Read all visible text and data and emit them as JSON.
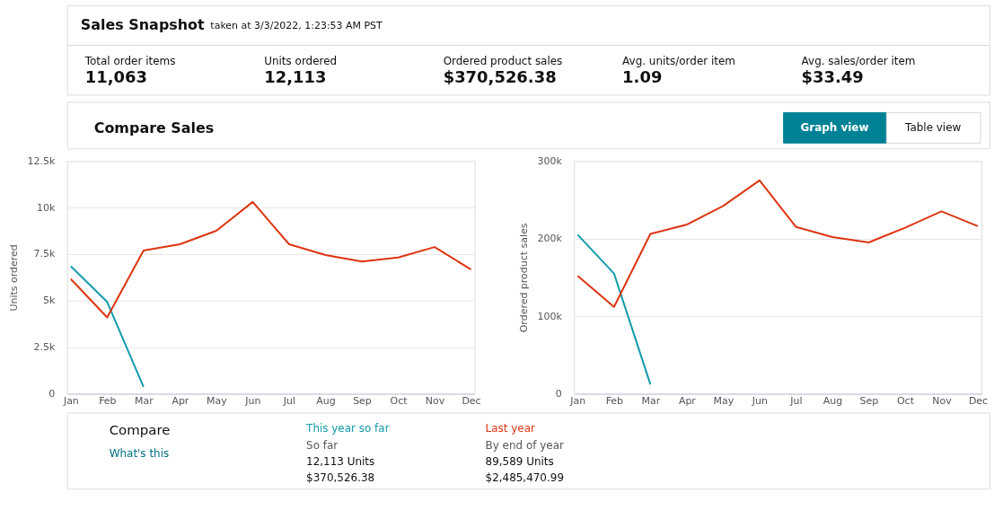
{
  "chart_data": [
    {
      "type": "other",
      "title": "Sales Snapshot",
      "subtitle": "taken at 3/3/2022, 1:23:53 AM PST",
      "annotations": [
        "Total order items",
        "11,063",
        "Units ordered",
        "12,113",
        "Ordered product sales",
        "$370,526.38",
        "Avg. units/order item",
        "1.09",
        "Avg. sales/order item",
        "$33.49"
      ]
    },
    {
      "type": "line",
      "title": "Compare Sales",
      "ylabel": "Units ordered",
      "categories": [
        "Jan",
        "Feb",
        "Mar",
        "Apr",
        "May",
        "Jun",
        "Jul",
        "Aug",
        "Sep",
        "Oct",
        "Nov",
        "Dec"
      ],
      "series": [
        {
          "name": "This year so far",
          "color": "#129bab",
          "values": [
            6850,
            4930,
            370,
            null,
            null,
            null,
            null,
            null,
            null,
            null,
            null,
            null
          ]
        },
        {
          "name": "Last year",
          "color": "#dd3511",
          "values": [
            6160,
            4100,
            7690,
            8030,
            8750,
            10300,
            8030,
            7450,
            7100,
            7320,
            7880,
            6670
          ]
        }
      ],
      "ylim": [
        0,
        12500
      ],
      "yticks": [
        0,
        {
          "value": 2500,
          "label": "2.5k"
        },
        {
          "value": 5000,
          "label": "5k"
        },
        {
          "value": 7500,
          "label": "7.5k"
        },
        {
          "value": 10000,
          "label": "10k"
        },
        {
          "value": 12500,
          "label": "12.5k"
        }
      ],
      "grid": "y",
      "legend": "bottom",
      "legend_title": "Compare",
      "marker": "none",
      "line_style": "solid"
    },
    {
      "type": "line",
      "ylabel": "Ordered product sales",
      "categories": [
        "Jan",
        "Feb",
        "Mar",
        "Apr",
        "May",
        "Jun",
        "Jul",
        "Aug",
        "Sep",
        "Oct",
        "Nov",
        "Dec"
      ],
      "series": [
        {
          "color": "#129bab",
          "values": [
            205000,
            155000,
            12000,
            null,
            null,
            null,
            null,
            null,
            null,
            null,
            null,
            null
          ]
        },
        {
          "color": "#dd3511",
          "values": [
            152000,
            112000,
            206000,
            218000,
            242000,
            275000,
            215000,
            202000,
            195000,
            214000,
            235000,
            216000
          ]
        }
      ],
      "ylim": [
        0,
        300000
      ],
      "yticks": [
        0,
        {
          "value": 100000,
          "label": "100k"
        },
        {
          "value": 200000,
          "label": "200k"
        },
        {
          "value": 300000,
          "label": "300k"
        }
      ],
      "grid": "y",
      "marker": "none",
      "line_style": "solid"
    },
    {
      "type": "other",
      "annotations": [
        "Graph view",
        "Table view",
        "What's this",
        "So far",
        "12,113 Units",
        "$370,526.38",
        "By end of year",
        "89,589 Units",
        "$2,485,470.99"
      ]
    }
  ]
}
